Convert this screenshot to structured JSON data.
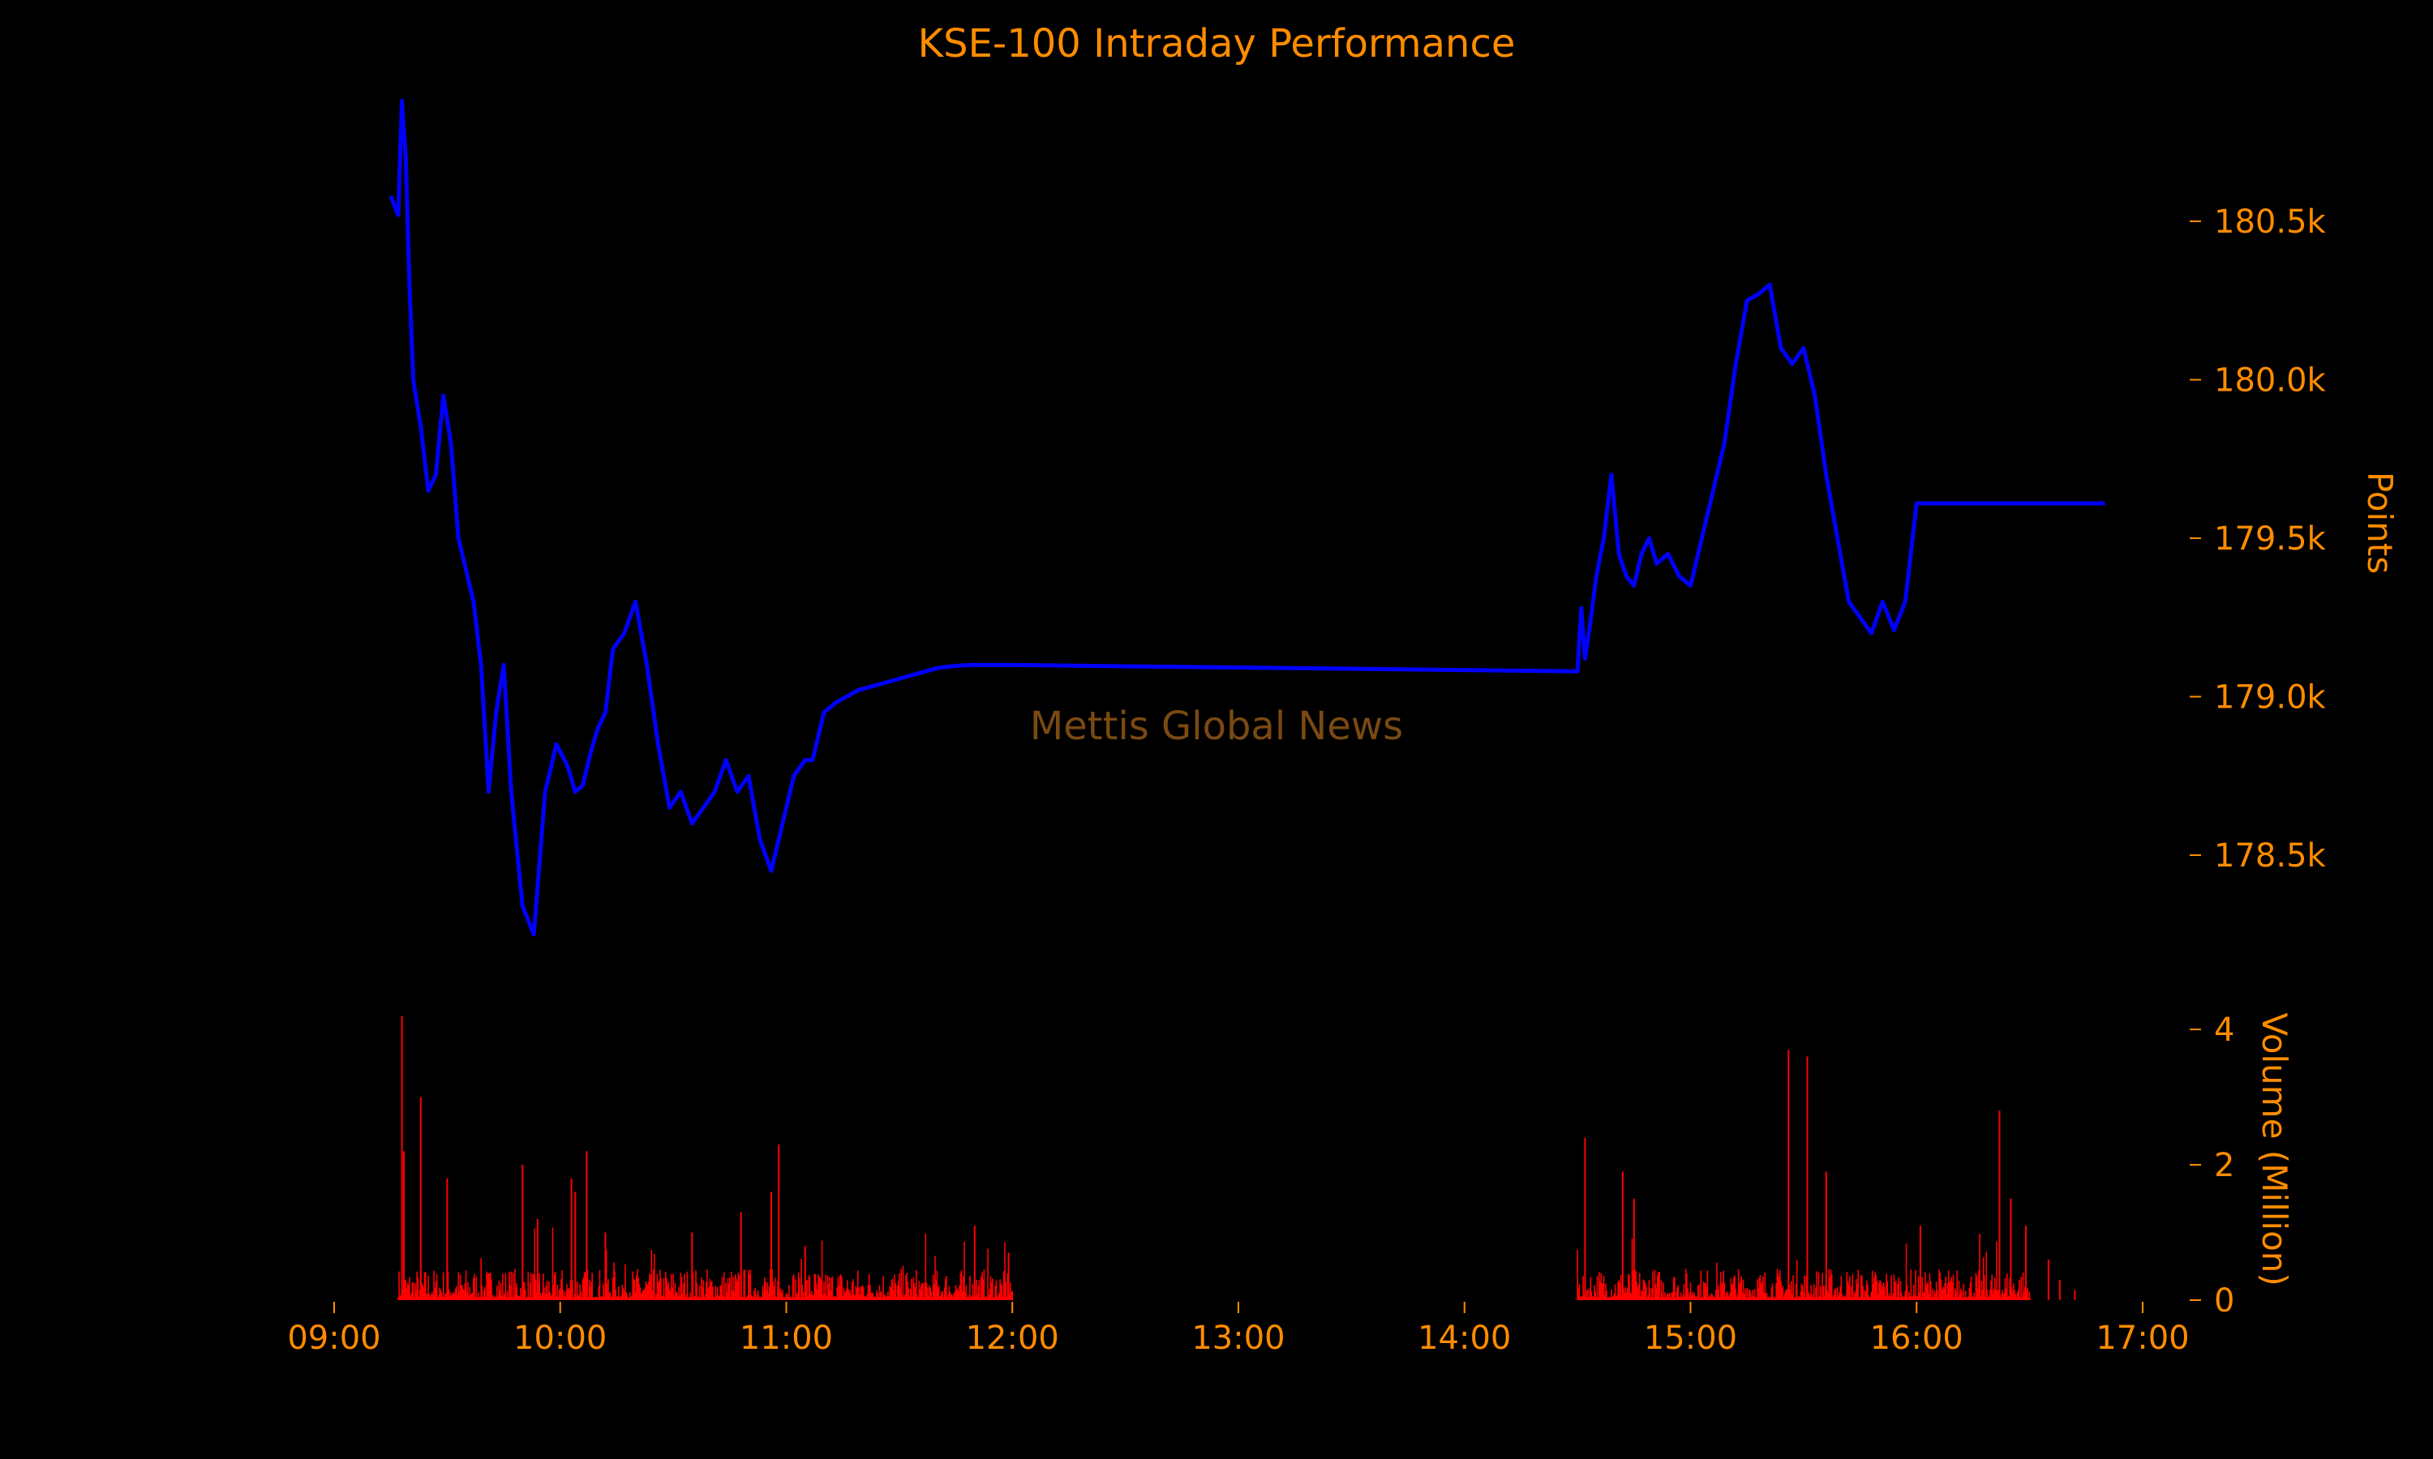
{
  "colors": {
    "background": "#000000",
    "text": "#ff8c00",
    "price_line": "#0000ff",
    "volume_bars": "#ff0000",
    "watermark": "#7a4a12"
  },
  "watermark": "Mettis Global News",
  "chart_data": [
    {
      "type": "line",
      "title": "KSE-100 Intraday Performance",
      "ylabel": "Points",
      "yaxis_side": "right",
      "ylim": [
        178250,
        180880
      ],
      "yticks": [
        178500,
        179000,
        179500,
        180000,
        180500
      ],
      "ytick_labels": [
        "178.5k",
        "179.0k",
        "179.5k",
        "180.0k",
        "180.5k"
      ],
      "grid": false,
      "series": [
        {
          "x": [
            "09:15",
            "09:17",
            "09:18",
            "09:19",
            "09:20",
            "09:21",
            "09:23",
            "09:25",
            "09:27",
            "09:29",
            "09:31",
            "09:33",
            "09:35",
            "09:37",
            "09:39",
            "09:41",
            "09:43",
            "09:45",
            "09:47",
            "09:50",
            "09:53",
            "09:56",
            "09:59",
            "10:02",
            "10:04",
            "10:06",
            "10:08",
            "10:10",
            "10:12",
            "10:14",
            "10:17",
            "10:20",
            "10:23",
            "10:26",
            "10:29",
            "10:32",
            "10:35",
            "10:38",
            "10:41",
            "10:44",
            "10:47",
            "10:50",
            "10:53",
            "10:56",
            "10:59",
            "11:02",
            "11:05",
            "11:07",
            "11:10",
            "11:13",
            "11:16",
            "11:19",
            "11:22",
            "11:25",
            "11:28",
            "11:31",
            "11:34",
            "11:37",
            "11:40",
            "11:43",
            "11:46",
            "11:49",
            "11:52",
            "11:55",
            "11:58",
            "12:00",
            "14:30",
            "14:31",
            "14:32",
            "14:33",
            "14:35",
            "14:37",
            "14:39",
            "14:41",
            "14:43",
            "14:45",
            "14:47",
            "14:49",
            "14:51",
            "14:54",
            "14:57",
            "15:00",
            "15:03",
            "15:06",
            "15:09",
            "15:12",
            "15:15",
            "15:18",
            "15:21",
            "15:24",
            "15:27",
            "15:30",
            "15:33",
            "15:36",
            "15:39",
            "15:42",
            "15:45",
            "15:48",
            "15:51",
            "15:54",
            "15:57",
            "16:00",
            "16:03",
            "16:06",
            "16:09",
            "16:12",
            "16:15",
            "16:18",
            "16:20",
            "16:22",
            "16:24",
            "16:26",
            "16:28",
            "16:30",
            "16:30.5",
            "16:50"
          ],
          "y": [
            180580,
            180520,
            180880,
            180700,
            180300,
            180000,
            179850,
            179650,
            179700,
            179950,
            179800,
            179500,
            179400,
            179300,
            179100,
            178700,
            178950,
            179100,
            178700,
            178340,
            178250,
            178700,
            178850,
            178780,
            178700,
            178720,
            178820,
            178900,
            178950,
            179150,
            179200,
            179300,
            179100,
            178850,
            178650,
            178700,
            178600,
            178650,
            178700,
            178800,
            178700,
            178750,
            178550,
            178450,
            178600,
            178750,
            178800,
            178800,
            178950,
            178980,
            179000,
            179020,
            179030,
            179040,
            179050,
            179060,
            179070,
            179080,
            179090,
            179095,
            179098,
            179100,
            179100,
            179100,
            179100,
            179100,
            179080,
            179280,
            179120,
            179200,
            179380,
            179500,
            179700,
            179450,
            179380,
            179350,
            179450,
            179500,
            179420,
            179450,
            179380,
            179350,
            179500,
            179650,
            179800,
            180050,
            180250,
            180270,
            180300,
            180100,
            180050,
            180100,
            179950,
            179700,
            179500,
            179300,
            179250,
            179200,
            179300,
            179210,
            179300,
            179610,
            179610,
            179610,
            179610,
            179610,
            179610,
            179610,
            179610,
            179610,
            179610,
            179610,
            179610,
            179610,
            179610,
            179610
          ]
        }
      ]
    },
    {
      "type": "bar",
      "ylabel": "Volume (Million)",
      "yaxis_side": "right",
      "ylim": [
        0,
        4
      ],
      "yticks": [
        0,
        2,
        4
      ],
      "xlim": [
        "09:00",
        "17:00"
      ],
      "xticks": [
        "09:00",
        "10:00",
        "11:00",
        "12:00",
        "13:00",
        "14:00",
        "15:00",
        "16:00",
        "17:00"
      ],
      "grid": false,
      "sessions": [
        [
          "09:17",
          "12:00"
        ],
        [
          "14:30",
          "16:30"
        ]
      ],
      "spikes": [
        {
          "x": "09:18",
          "value": 4.2
        },
        {
          "x": "09:18.5",
          "value": 2.2
        },
        {
          "x": "09:23",
          "value": 3.0
        },
        {
          "x": "09:30",
          "value": 1.8
        },
        {
          "x": "09:50",
          "value": 2.0
        },
        {
          "x": "09:54",
          "value": 1.2
        },
        {
          "x": "10:03",
          "value": 1.8
        },
        {
          "x": "10:04",
          "value": 1.6
        },
        {
          "x": "10:07",
          "value": 2.2
        },
        {
          "x": "10:12",
          "value": 1.0
        },
        {
          "x": "10:35",
          "value": 1.0
        },
        {
          "x": "10:48",
          "value": 1.3
        },
        {
          "x": "10:56",
          "value": 1.6
        },
        {
          "x": "10:58",
          "value": 2.3
        },
        {
          "x": "11:05",
          "value": 0.8
        },
        {
          "x": "11:50",
          "value": 1.1
        },
        {
          "x": "11:59",
          "value": 0.7
        },
        {
          "x": "14:32",
          "value": 2.4
        },
        {
          "x": "14:42",
          "value": 1.9
        },
        {
          "x": "14:45",
          "value": 1.5
        },
        {
          "x": "15:26",
          "value": 3.7
        },
        {
          "x": "15:31",
          "value": 3.6
        },
        {
          "x": "15:36",
          "value": 1.9
        },
        {
          "x": "16:01",
          "value": 1.1
        },
        {
          "x": "16:22",
          "value": 2.8
        },
        {
          "x": "16:25",
          "value": 1.5
        },
        {
          "x": "16:29",
          "value": 1.1
        }
      ],
      "post_close_volume": [
        {
          "x": "16:35",
          "value": 0.6
        },
        {
          "x": "16:38",
          "value": 0.3
        },
        {
          "x": "16:42",
          "value": 0.15
        }
      ]
    }
  ]
}
